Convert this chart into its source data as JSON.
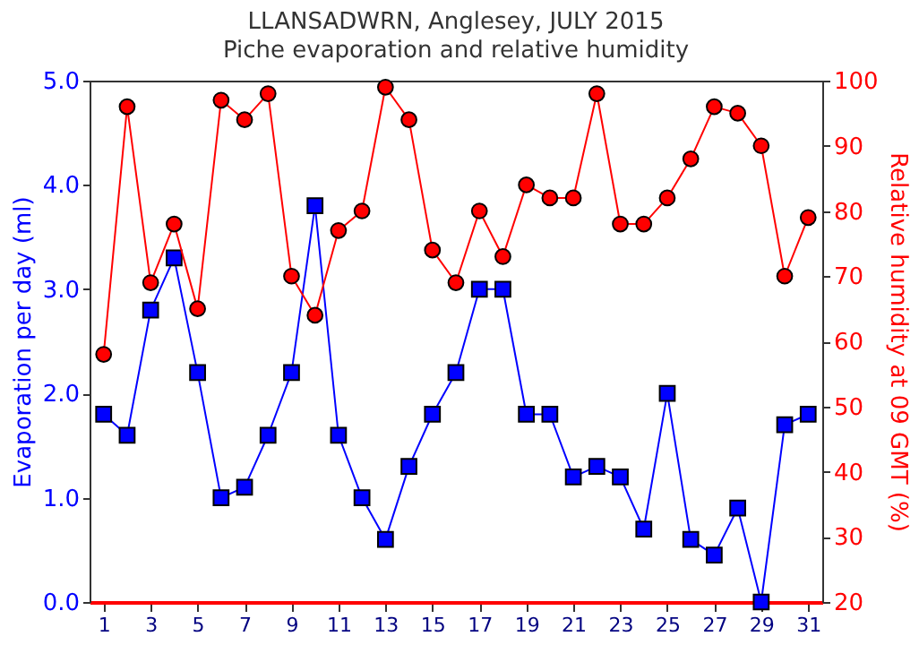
{
  "chart_data": {
    "type": "line",
    "title": "LLANSADWRN, Anglesey, JULY 2015",
    "subtitle": "Piche evaporation and relative humidity",
    "ylabel": "Evaporation per day (ml)",
    "y2label": "Relative humidity at 09 GMT (%)",
    "x": [
      1,
      2,
      3,
      4,
      5,
      6,
      7,
      8,
      9,
      10,
      11,
      12,
      13,
      14,
      15,
      16,
      17,
      18,
      19,
      20,
      21,
      22,
      23,
      24,
      25,
      26,
      27,
      28,
      29,
      30,
      31
    ],
    "xlim": [
      0.4,
      31.6
    ],
    "xticks": [
      1,
      3,
      5,
      7,
      9,
      11,
      13,
      15,
      17,
      19,
      21,
      23,
      25,
      27,
      29,
      31
    ],
    "ylim": [
      0,
      5
    ],
    "yticks": [
      {
        "value": 0,
        "label": "0.0"
      },
      {
        "value": 1,
        "label": "1.0"
      },
      {
        "value": 2,
        "label": "2.0"
      },
      {
        "value": 3,
        "label": "3.0"
      },
      {
        "value": 4,
        "label": "4.0"
      },
      {
        "value": 5,
        "label": "5.0"
      }
    ],
    "y2lim": [
      20,
      100
    ],
    "y2ticks": [
      20,
      30,
      40,
      50,
      60,
      70,
      80,
      90,
      100
    ],
    "series": [
      {
        "color": "#0000ff",
        "marker": "square",
        "values": [
          1.8,
          1.6,
          2.8,
          3.3,
          2.2,
          1.0,
          1.1,
          1.6,
          2.2,
          3.8,
          1.6,
          1.0,
          0.6,
          1.3,
          1.8,
          2.2,
          3.0,
          3.0,
          1.8,
          1.8,
          1.2,
          1.3,
          1.2,
          0.7,
          2.0,
          0.6,
          0.45,
          0.9,
          0.0,
          1.7,
          1.8
        ]
      },
      {
        "color": "#ff0000",
        "marker": "circle",
        "axis": "y2",
        "values": [
          58,
          96,
          69,
          78,
          65,
          97,
          94,
          98,
          70,
          64,
          77,
          80,
          99,
          94,
          74,
          69,
          80,
          73,
          84,
          82,
          82,
          98,
          78,
          78,
          82,
          88,
          96,
          95,
          90,
          70,
          79
        ]
      }
    ],
    "grid": false,
    "legend": false
  }
}
